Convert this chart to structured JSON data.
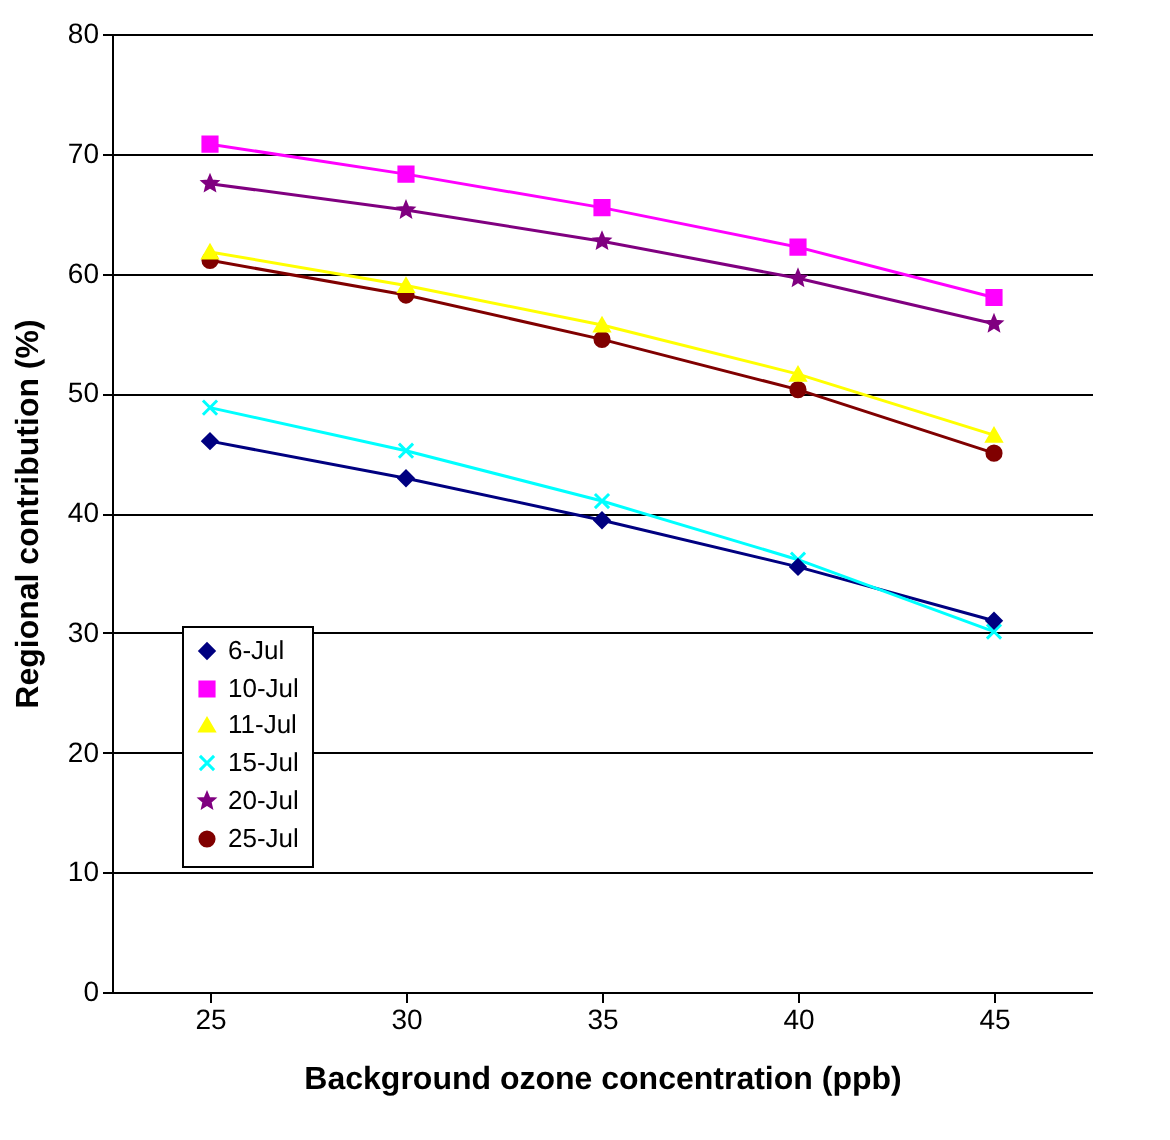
{
  "chart_data": {
    "type": "line",
    "xlabel": "Background ozone concentration (ppb)",
    "ylabel": "Regional contribution (%)",
    "categories": [
      "25",
      "30",
      "35",
      "40",
      "45"
    ],
    "series": [
      {
        "name": "6-Jul",
        "color": "#000080",
        "marker": "diamond",
        "values": [
          46.0,
          42.9,
          39.4,
          35.5,
          31.0
        ]
      },
      {
        "name": "10-Jul",
        "color": "#ff00ff",
        "marker": "square",
        "values": [
          70.8,
          68.3,
          65.5,
          62.2,
          58.0
        ]
      },
      {
        "name": "11-Jul",
        "color": "#ffff00",
        "marker": "triangle",
        "values": [
          61.8,
          59.0,
          55.7,
          51.6,
          46.5
        ]
      },
      {
        "name": "15-Jul",
        "color": "#00ffff",
        "marker": "cross",
        "values": [
          48.8,
          45.2,
          41.0,
          36.1,
          30.1
        ]
      },
      {
        "name": "20-Jul",
        "color": "#800080",
        "marker": "star",
        "values": [
          67.5,
          65.3,
          62.7,
          59.6,
          55.8
        ]
      },
      {
        "name": "25-Jul",
        "color": "#800000",
        "marker": "circle",
        "values": [
          61.1,
          58.2,
          54.5,
          50.3,
          45.0
        ]
      }
    ],
    "ylim": [
      0,
      80
    ],
    "yticks": [
      0,
      10,
      20,
      30,
      40,
      50,
      60,
      70,
      80
    ],
    "grid": "y",
    "legend": "bottom left",
    "line_style": "solid"
  }
}
